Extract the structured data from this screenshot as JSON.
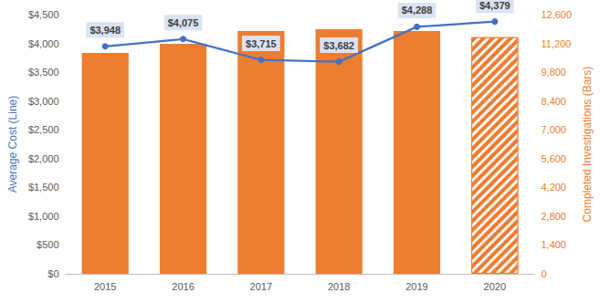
{
  "chart_data": {
    "type": "combo",
    "categories": [
      "2015",
      "2016",
      "2017",
      "2018",
      "2019",
      "2020"
    ],
    "ylabel": "Average Cost (Line)",
    "y2label": "Completed Investigations (Bars)",
    "ylim": [
      0,
      4500
    ],
    "yticks": [
      {
        "value": 0,
        "label": "$0"
      },
      {
        "value": 500,
        "label": "$500"
      },
      {
        "value": 1000,
        "label": "$1,000"
      },
      {
        "value": 1500,
        "label": "$1,500"
      },
      {
        "value": 2000,
        "label": "$2,000"
      },
      {
        "value": 2500,
        "label": "$2,500"
      },
      {
        "value": 3000,
        "label": "$3,000"
      },
      {
        "value": 3500,
        "label": "$3,500"
      },
      {
        "value": 4000,
        "label": "$4,000"
      },
      {
        "value": 4500,
        "label": "$4,500"
      }
    ],
    "y2lim": [
      0,
      12600
    ],
    "y2ticks": [
      0,
      {
        "value": 1400,
        "label": "1,400"
      },
      {
        "value": 2800,
        "label": "2,800"
      },
      {
        "value": 4200,
        "label": "4,200"
      },
      {
        "value": 5600,
        "label": "5,600"
      },
      {
        "value": 7000,
        "label": "7,000"
      },
      {
        "value": 8400,
        "label": "8,400"
      },
      {
        "value": 9800,
        "label": "9,800"
      },
      {
        "value": 11200,
        "label": "11,200"
      },
      {
        "value": 12600,
        "label": "12,600"
      }
    ],
    "grid": false,
    "series": [
      {
        "type": "bar",
        "axis": "y2",
        "color": "#ed7d31",
        "values": [
          10740,
          11180,
          11800,
          11890,
          11800,
          11500
        ]
      },
      {
        "type": "line",
        "axis": "y",
        "color": "#4472c4",
        "marker": "circle",
        "data_labels": true,
        "values": [
          3948,
          4075,
          3715,
          3682,
          4288,
          4379
        ],
        "value_labels": [
          "$3,948",
          "$4,075",
          "$3,715",
          "$3,682",
          "$4,288",
          "$4,379"
        ]
      }
    ]
  }
}
